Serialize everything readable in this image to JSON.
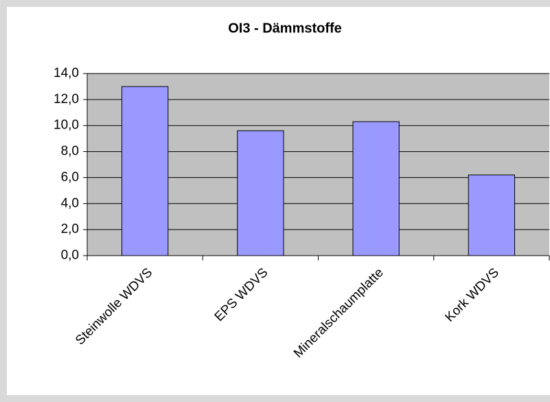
{
  "chart_data": {
    "type": "bar",
    "title": "OI3 - Dämmstoffe",
    "categories": [
      "Steinwolle WDVS",
      "EPS WDVS",
      "Mineralschaumplatte",
      "Kork WDVS"
    ],
    "values": [
      13.0,
      9.6,
      10.3,
      6.2
    ],
    "color": "#9999ff",
    "ylim": [
      0,
      14
    ],
    "yticks": [
      {
        "value": 0,
        "label": "0,0"
      },
      {
        "value": 2,
        "label": "2,0"
      },
      {
        "value": 4,
        "label": "4,0"
      },
      {
        "value": 6,
        "label": "6,0"
      },
      {
        "value": 8,
        "label": "8,0"
      },
      {
        "value": 10,
        "label": "10,0"
      },
      {
        "value": 12,
        "label": "12,0"
      },
      {
        "value": 14,
        "label": "14,0"
      }
    ],
    "grid": true
  }
}
